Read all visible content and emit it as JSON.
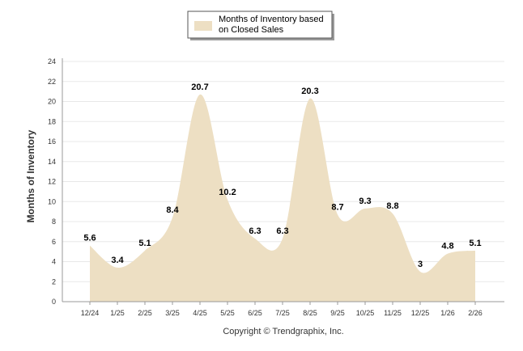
{
  "chart_data": {
    "type": "area",
    "categories": [
      "12/24",
      "1/25",
      "2/25",
      "3/25",
      "4/25",
      "5/25",
      "6/25",
      "7/25",
      "8/25",
      "9/25",
      "10/25",
      "11/25",
      "12/25",
      "1/26",
      "2/26"
    ],
    "series": [
      {
        "name": "Months of Inventory based on Closed Sales",
        "legend_lines": [
          "Months of Inventory based",
          "on Closed Sales"
        ],
        "values": [
          5.6,
          3.4,
          5.1,
          8.4,
          20.7,
          10.2,
          6.3,
          6.3,
          20.3,
          8.7,
          9.3,
          8.8,
          3,
          4.8,
          5.1
        ],
        "labels": [
          "5.6",
          "3.4",
          "5.1",
          "8.4",
          "20.7",
          "10.2",
          "6.3",
          "6.3",
          "20.3",
          "8.7",
          "9.3",
          "8.8",
          "3",
          "4.8",
          "5.1"
        ],
        "color": "#eddfc3"
      }
    ],
    "ylabel": "Months of Inventory",
    "xlabel": "",
    "ylim": [
      0,
      24
    ],
    "yticks": [
      0,
      2,
      4,
      6,
      8,
      10,
      12,
      14,
      16,
      18,
      20,
      22,
      24
    ],
    "grid": true,
    "legend_position": "top-center"
  },
  "footer": {
    "copyright": "Copyright © Trendgraphix, Inc."
  },
  "colors": {
    "area": "#eddfc3",
    "grid": "#e8e8e8",
    "axis": "#999999"
  }
}
